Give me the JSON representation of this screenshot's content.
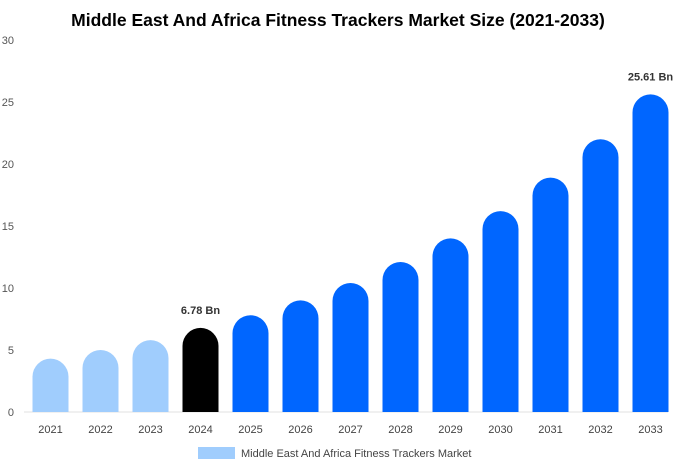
{
  "chart_data": {
    "type": "bar",
    "title": "Middle East And Africa Fitness Trackers Market Size (2021-2033)",
    "categories": [
      "2021",
      "2022",
      "2023",
      "2024",
      "2025",
      "2026",
      "2027",
      "2028",
      "2029",
      "2030",
      "2031",
      "2032",
      "2033"
    ],
    "series": [
      {
        "name": "Middle East And Africa Fitness Trackers Market",
        "values": [
          4.3,
          5.0,
          5.8,
          6.78,
          7.8,
          9.0,
          10.4,
          12.1,
          14.0,
          16.2,
          18.9,
          22.0,
          25.61
        ]
      }
    ],
    "data_labels": [
      {
        "category": "2024",
        "text": "6.78 Bn"
      },
      {
        "category": "2033",
        "text": "25.61 Bn"
      }
    ],
    "ylim": [
      0,
      30
    ],
    "yticks": [
      0,
      5,
      10,
      15,
      20,
      25,
      30
    ],
    "grid": false,
    "legend": "bottom",
    "colors": {
      "historical": "#a0cdfd",
      "base_year": "#000000",
      "forecast": "#0066ff",
      "legend_swatch": "#a0cdfd"
    },
    "base_year": "2024"
  }
}
